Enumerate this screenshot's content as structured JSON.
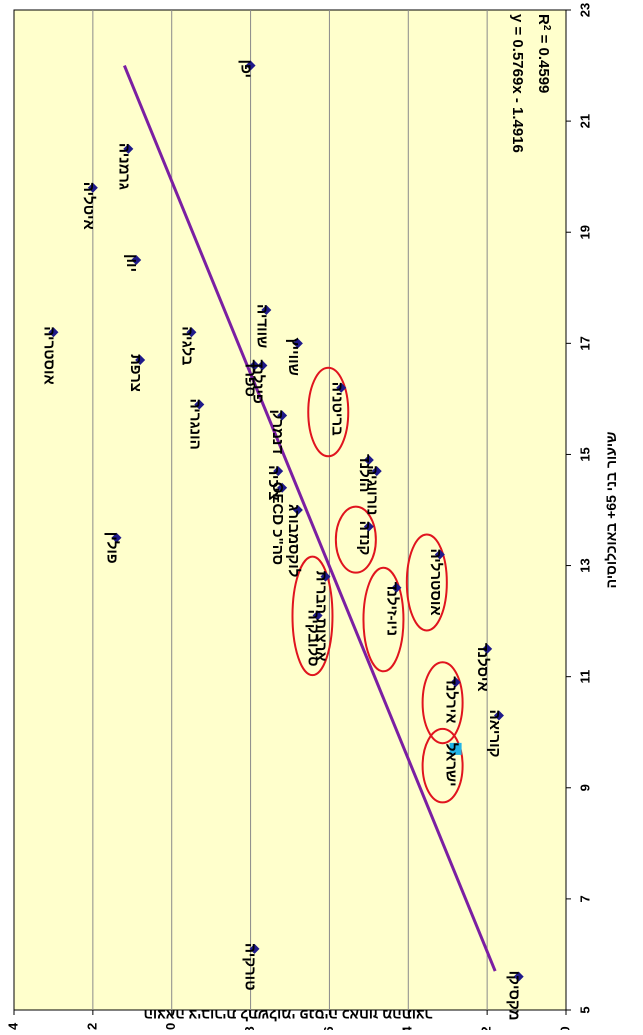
{
  "chart_data": {
    "type": "scatter",
    "orientation": "rotated-90-clockwise",
    "xlabel": "שיעור בני 65+ באוכלוסיה",
    "ylabel": "הוצאה ציבורית לתשלומי פנסיה כאחוז מהתוצר",
    "xlim": [
      5,
      23
    ],
    "ylim": [
      0,
      14
    ],
    "xticks": [
      "5",
      "7",
      "9",
      "11",
      "13",
      "15",
      "17",
      "19",
      "21",
      "23"
    ],
    "yticks": [
      "0",
      "2",
      "4",
      "6",
      "8",
      "10",
      "12",
      "14"
    ],
    "grid": "horizontal",
    "plot_background": "#FFFFCC",
    "series_color": "#1F1A8A",
    "highlight_color": "#22B4E6",
    "trend_color": "#7B1FA2",
    "circle_color": "#E0141E",
    "trendline": {
      "equation": "y = 0.5769x - 1.4916",
      "r2_text": "R",
      "r2_sup": "2",
      "r2_value": " = 0.4599",
      "x_range": [
        5.7,
        22
      ]
    },
    "points": [
      {
        "label": "יפן",
        "x": 22.0,
        "y": 8.0
      },
      {
        "label": "גרמניה",
        "x": 20.5,
        "y": 11.1
      },
      {
        "label": "איטליה",
        "x": 19.8,
        "y": 12.0
      },
      {
        "label": "יוון",
        "x": 18.5,
        "y": 10.9
      },
      {
        "label": "אוסטריה",
        "x": 17.2,
        "y": 13.0
      },
      {
        "label": "שוודיה",
        "x": 17.6,
        "y": 7.6
      },
      {
        "label": "שווייץ",
        "x": 17.0,
        "y": 6.8
      },
      {
        "label": "צרפת",
        "x": 16.7,
        "y": 10.8
      },
      {
        "label": "בלגיה",
        "x": 17.2,
        "y": 9.5
      },
      {
        "label": "פינלנד",
        "x": 16.6,
        "y": 7.7
      },
      {
        "label": "ספרד",
        "x": 16.6,
        "y": 7.9
      },
      {
        "label": "בריטניה",
        "x": 16.2,
        "y": 5.7
      },
      {
        "label": "הונגריה",
        "x": 15.9,
        "y": 9.3
      },
      {
        "label": "דנמרק",
        "x": 15.7,
        "y": 7.2
      },
      {
        "label": "הולנד",
        "x": 14.9,
        "y": 5.0
      },
      {
        "label": "נורווגיה",
        "x": 14.7,
        "y": 4.8
      },
      {
        "label": "צ'כיה",
        "x": 14.7,
        "y": 7.3
      },
      {
        "label": "לוקסמבורג",
        "x": 14.0,
        "y": 6.8
      },
      {
        "label": "סה\"כ OECD",
        "x": 14.4,
        "y": 7.2
      },
      {
        "label": "פולין",
        "x": 13.5,
        "y": 11.4
      },
      {
        "label": "קנדה",
        "x": 13.7,
        "y": 5.0
      },
      {
        "label": "אוסטרליה",
        "x": 13.2,
        "y": 3.2
      },
      {
        "label": "ארצות הברית",
        "x": 12.8,
        "y": 6.1
      },
      {
        "label": "ניו-זילנד",
        "x": 12.6,
        "y": 4.3
      },
      {
        "label": "סלובקיה",
        "x": 12.1,
        "y": 6.3
      },
      {
        "label": "איסלנד",
        "x": 11.5,
        "y": 2.0
      },
      {
        "label": "אירלנד",
        "x": 10.9,
        "y": 2.8
      },
      {
        "label": "קוריאה",
        "x": 10.3,
        "y": 1.7
      },
      {
        "label": "ישראל",
        "x": 9.7,
        "y": 2.8,
        "highlight": true
      },
      {
        "label": "טורקיה",
        "x": 6.1,
        "y": 7.9
      },
      {
        "label": "מקסיקו",
        "x": 5.6,
        "y": 1.2
      }
    ],
    "circled": [
      "בריטניה",
      "קנדה",
      "אוסטרליה",
      "ארצות הברית",
      "ניו-זילנד",
      "אירלנד",
      "ישראל"
    ]
  }
}
